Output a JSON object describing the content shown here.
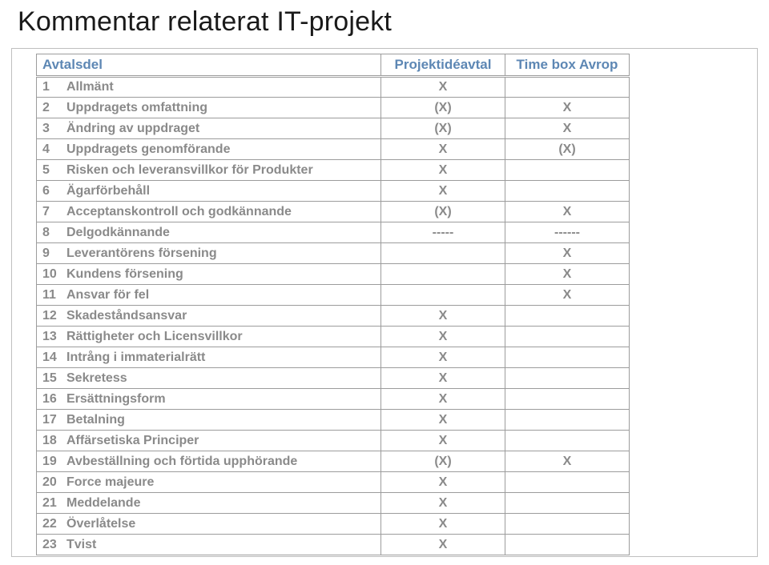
{
  "title": "Kommentar relaterat IT-projekt",
  "table": {
    "headers": [
      "Avtalsdel",
      "Projektidéavtal",
      "Time box  Avrop"
    ],
    "rows": [
      {
        "num": "1",
        "label": "Allmänt",
        "c1": "X",
        "c2": ""
      },
      {
        "num": "2",
        "label": "Uppdragets omfattning",
        "c1": "(X)",
        "c2": "X"
      },
      {
        "num": "3",
        "label": "Ändring av uppdraget",
        "c1": "(X)",
        "c2": "X"
      },
      {
        "num": "4",
        "label": "Uppdragets genomförande",
        "c1": "X",
        "c2": "(X)"
      },
      {
        "num": "5",
        "label": "Risken och leveransvillkor för Produkter",
        "c1": "X",
        "c2": ""
      },
      {
        "num": "6",
        "label": "Ägarförbehåll",
        "c1": "X",
        "c2": ""
      },
      {
        "num": "7",
        "label": "Acceptanskontroll och godkännande",
        "c1": "(X)",
        "c2": "X"
      },
      {
        "num": "8",
        "label": "Delgodkännande",
        "c1": "-----",
        "c2": "------"
      },
      {
        "num": "9",
        "label": "Leverantörens försening",
        "c1": "",
        "c2": "X"
      },
      {
        "num": "10",
        "label": "Kundens försening",
        "c1": "",
        "c2": "X"
      },
      {
        "num": "11",
        "label": "Ansvar för fel",
        "c1": "",
        "c2": "X"
      },
      {
        "num": "12",
        "label": "Skadeståndsansvar",
        "c1": "X",
        "c2": ""
      },
      {
        "num": "13",
        "label": "Rättigheter och Licensvillkor",
        "c1": "X",
        "c2": ""
      },
      {
        "num": "14",
        "label": "Intrång i  immaterialrätt",
        "c1": "X",
        "c2": ""
      },
      {
        "num": "15",
        "label": "Sekretess",
        "c1": "X",
        "c2": ""
      },
      {
        "num": "16",
        "label": "Ersättningsform",
        "c1": "X",
        "c2": ""
      },
      {
        "num": "17",
        "label": "Betalning",
        "c1": "X",
        "c2": ""
      },
      {
        "num": "18",
        "label": "Affärsetiska Principer",
        "c1": "X",
        "c2": ""
      },
      {
        "num": "19",
        "label": "Avbeställning och förtida upphörande",
        "c1": "(X)",
        "c2": "X"
      },
      {
        "num": "20",
        "label": "Force majeure",
        "c1": "X",
        "c2": ""
      },
      {
        "num": "21",
        "label": "Meddelande",
        "c1": "X",
        "c2": ""
      },
      {
        "num": "22",
        "label": "Överlåtelse",
        "c1": "X",
        "c2": ""
      },
      {
        "num": "23",
        "label": "Tvist",
        "c1": "X",
        "c2": ""
      }
    ]
  },
  "colors": {
    "title": "#1a1a1a",
    "header": "#5d87b4",
    "body": "#8a8a8a",
    "border": "#9c9c9c",
    "frame": "#bfbfbf"
  }
}
